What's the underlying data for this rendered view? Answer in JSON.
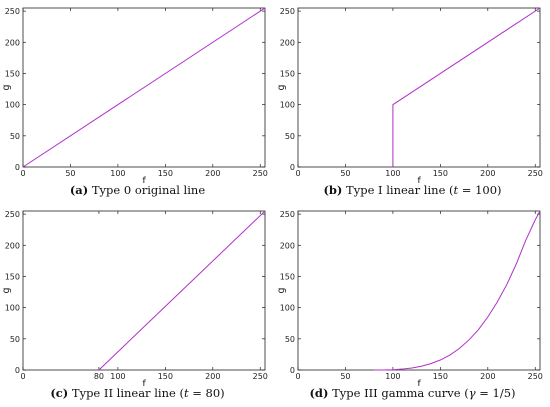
{
  "line_color": "#b030c8",
  "chart_data": [
    {
      "type": "line",
      "panel_label": "(a)",
      "caption": "Type 0 original line",
      "xlabel": "f",
      "ylabel": "g",
      "xlim": [
        0,
        255
      ],
      "ylim": [
        0,
        255
      ],
      "xticks": [
        0,
        50,
        100,
        150,
        200,
        250
      ],
      "yticks": [
        0,
        50,
        100,
        150,
        200,
        250
      ],
      "x": [
        0,
        255
      ],
      "y": [
        0,
        255
      ]
    },
    {
      "type": "line",
      "panel_label": "(b)",
      "caption": "Type I linear line (",
      "caption_var": "t",
      "caption_eq": " = 100)",
      "xlabel": "f",
      "ylabel": "g",
      "xlim": [
        0,
        255
      ],
      "ylim": [
        0,
        255
      ],
      "xticks": [
        0,
        50,
        100,
        150,
        200,
        250
      ],
      "yticks": [
        0,
        50,
        100,
        150,
        200,
        250
      ],
      "x": [
        100,
        100,
        255
      ],
      "y": [
        0,
        100,
        255
      ]
    },
    {
      "type": "line",
      "panel_label": "(c)",
      "caption": "Type II linear line (",
      "caption_var": "t",
      "caption_eq": " = 80)",
      "xlabel": "f",
      "ylabel": "g",
      "xlim": [
        0,
        255
      ],
      "ylim": [
        0,
        255
      ],
      "xticks": [
        0,
        80,
        100,
        150,
        200,
        250
      ],
      "yticks": [
        0,
        50,
        100,
        150,
        200,
        250
      ],
      "x": [
        80,
        255
      ],
      "y": [
        0,
        255
      ]
    },
    {
      "type": "line",
      "panel_label": "(d)",
      "caption": "Type III gamma curve (",
      "caption_var": "γ",
      "caption_eq": " = 1/5)",
      "xlabel": "f",
      "ylabel": "g",
      "xlim": [
        0,
        255
      ],
      "ylim": [
        0,
        255
      ],
      "xticks": [
        0,
        50,
        100,
        150,
        200,
        250
      ],
      "yticks": [
        0,
        50,
        100,
        150,
        200,
        250
      ],
      "x": [
        80,
        90,
        100,
        110,
        120,
        130,
        140,
        150,
        160,
        170,
        180,
        190,
        200,
        210,
        220,
        230,
        240,
        250,
        255
      ],
      "y": [
        0,
        0.003,
        0.5,
        1.5,
        3.2,
        6,
        10.2,
        16,
        24,
        34.5,
        48,
        64.5,
        85,
        109,
        137,
        170,
        208,
        241,
        255
      ]
    }
  ]
}
